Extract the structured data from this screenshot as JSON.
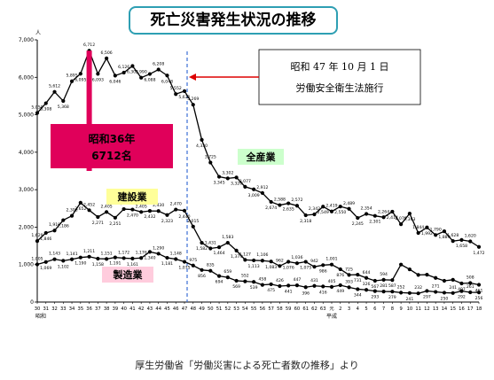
{
  "chart_data": {
    "type": "line",
    "title": "死亡災害発生状況の推移",
    "ylim": [
      0,
      7000
    ],
    "yticks": [
      "0",
      "1,000",
      "2,000",
      "3,000",
      "4,000",
      "5,000",
      "6,000",
      "7,000"
    ],
    "y_unit": "人",
    "x_ticks": [
      "30",
      "31",
      "32",
      "33",
      "34",
      "35",
      "36",
      "37",
      "38",
      "39",
      "40",
      "41",
      "42",
      "43",
      "44",
      "45",
      "46",
      "47",
      "48",
      "49",
      "50",
      "51",
      "52",
      "53",
      "54",
      "55",
      "56",
      "57",
      "58",
      "59",
      "60",
      "61",
      "62",
      "63",
      "元",
      "2",
      "3",
      "4",
      "5",
      "6",
      "7",
      "8",
      "9",
      "10",
      "11",
      "12",
      "13",
      "14",
      "15",
      "16",
      "17",
      "18"
    ],
    "era_labels": [
      {
        "text": "昭和",
        "at": 0
      },
      {
        "text": "平成",
        "at": 34
      }
    ],
    "series": [
      {
        "name": "全産業",
        "color": "#000000",
        "values": [
          5050,
          5308,
          5612,
          5368,
          5895,
          6095,
          6712,
          6093,
          6506,
          6046,
          6126,
          6303,
          5990,
          6088,
          6208,
          6048,
          5552,
          5631,
          5269,
          4330,
          3725,
          3345,
          3302,
          3326,
          3077,
          3009,
          2912,
          2674,
          2588,
          2635,
          2572,
          2318,
          2342,
          2549,
          2419,
          2550,
          2489,
          2245,
          2354,
          2301,
          2264,
          2414,
          2078,
          2363,
          1844,
          1992,
          1790,
          1889,
          1628,
          1658,
          1620,
          1472
        ]
      },
      {
        "name": "建設業",
        "color": "#000000",
        "values": [
          1629,
          1846,
          1910,
          2186,
          2302,
          2652,
          2452,
          2271,
          2405,
          2251,
          2482,
          2470,
          2405,
          2432,
          2430,
          2323,
          2470,
          2440,
          2015,
          1582,
          1431,
          1464,
          1583,
          1374,
          1127,
          1113,
          1106,
          1083,
          962,
          1076,
          1036,
          1075,
          942,
          986,
          1001,
          876,
          725,
          731,
          644,
          567,
          594,
          587,
          1001,
          873,
          725,
          731,
          644,
          567,
          594,
          497,
          508,
          461
        ]
      },
      {
        "name": "製造業",
        "color": "#000000",
        "values": [
          1005,
          1069,
          1143,
          1102,
          1141,
          1190,
          1211,
          1158,
          1151,
          1191,
          1172,
          1161,
          1176,
          1340,
          1290,
          1181,
          1148,
          1075,
          975,
          856,
          835,
          694,
          659,
          569,
          552,
          539,
          458,
          475,
          426,
          441,
          447,
          396,
          431,
          416,
          405,
          449,
          393,
          344,
          326,
          293,
          281,
          279,
          252,
          241,
          232,
          297,
          271,
          250,
          241,
          292,
          261,
          256
        ]
      }
    ],
    "annotations": {
      "law_line1": "昭和 47 年 10 月 1 日",
      "law_line2": "労働安全衛生法施行",
      "peak_line1": "昭和36年",
      "peak_line2": "6712名"
    },
    "value_labels": {
      "全産業": [
        "5,050",
        "5,308",
        "5,612",
        "5,368",
        "5,895",
        "6,095",
        "6,712",
        "6,093",
        "6,506",
        "6,046",
        "6,126",
        "6,303",
        "5,990",
        "6,088",
        "6,208",
        "6,048",
        "5,552",
        "5,631",
        "5,269",
        "4,330",
        "3,725",
        "3,345",
        "3,302",
        "3,326",
        "3,077",
        "3,009",
        "2,912",
        "2,674",
        "2,588",
        "2,635",
        "2,572",
        "2,318",
        "2,342",
        "2,549",
        "2,419",
        "2,550",
        "2,489",
        "2,245",
        "2,354",
        "2,301",
        "2,264",
        "2,414",
        "2,078",
        "2,363",
        "1,844",
        "1,992",
        "1,790",
        "1,889",
        "1,628",
        "1,658",
        "1,620",
        "1,472"
      ],
      "建設業": [
        "1,629",
        "1,846",
        "1,910",
        "2,186",
        "2,302",
        "2,652",
        "2,452",
        "2,271",
        "2,405",
        "2,251",
        "2,482",
        "2,470",
        "2,405",
        "2,432",
        "2,430",
        "2,323",
        "2,470",
        "2,440",
        "2,015",
        "1,582",
        "1,431",
        "1,464",
        "1,583",
        "1,374",
        "1,127",
        "1,113",
        "1,106",
        "1,083",
        "962",
        "1,076",
        "1,036",
        "1,075",
        "942",
        "986",
        "1,001",
        "876",
        "725",
        "731",
        "644",
        "567",
        "594",
        "587",
        "",
        "",
        "",
        "",
        "",
        "",
        "",
        "497",
        "508",
        "461"
      ],
      "製造業": [
        "1,005",
        "1,069",
        "1,143",
        "1,102",
        "1,141",
        "1,190",
        "1,211",
        "1,158",
        "1,151",
        "1,191",
        "1,172",
        "1,161",
        "1,176",
        "1,340",
        "1,290",
        "1,181",
        "1,148",
        "1,075",
        "975",
        "856",
        "835",
        "694",
        "659",
        "569",
        "552",
        "539",
        "458",
        "475",
        "426",
        "441",
        "447",
        "396",
        "431",
        "416",
        "405",
        "449",
        "393",
        "344",
        "326",
        "293",
        "281",
        "279",
        "252",
        "241",
        "232",
        "297",
        "271",
        "250",
        "241",
        "292",
        "261",
        "256"
      ]
    },
    "legend_boxes": {
      "all": {
        "text": "全産業",
        "color": "#ccffcc"
      },
      "construction": {
        "text": "建設業",
        "color": "#ffff99"
      },
      "manufacturing": {
        "text": "製造業",
        "color": "#ffccdd"
      }
    },
    "colors": {
      "peak_bar": "#e0005a",
      "arrow": "#dd0000",
      "dashed_line": "#3b6fd6"
    }
  },
  "source": "厚生労働省「労働災害による死亡者数の推移」より"
}
